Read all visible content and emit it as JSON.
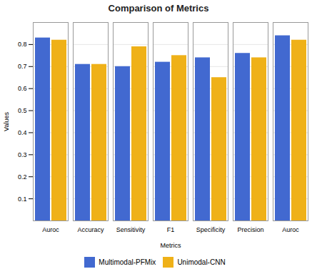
{
  "chart_data": {
    "type": "bar",
    "title": "Comparison of Metrics",
    "xlabel": "Metrics",
    "ylabel": "Values",
    "categories": [
      "Auroc",
      "Accuracy",
      "Sensitivity",
      "F1",
      "Specificity",
      "Precision",
      "Auroc"
    ],
    "series": [
      {
        "name": "Multimodal-PFMix",
        "values": [
          0.83,
          0.71,
          0.7,
          0.72,
          0.74,
          0.76,
          0.84
        ]
      },
      {
        "name": "Unimodal-CNN",
        "values": [
          0.82,
          0.71,
          0.79,
          0.75,
          0.65,
          0.74,
          0.82
        ]
      }
    ],
    "ylim": [
      0.0,
      0.9
    ],
    "yticks": [
      0.1,
      0.2,
      0.3,
      0.4,
      0.5,
      0.6,
      0.7,
      0.8
    ],
    "grid": true,
    "legend": "bottom"
  }
}
